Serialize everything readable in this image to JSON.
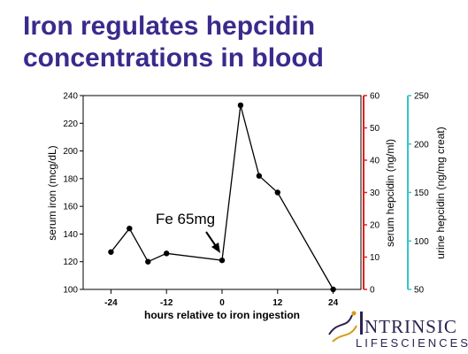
{
  "title": {
    "line1": "Iron regulates hepcidin",
    "line2": "concentrations in blood"
  },
  "colors": {
    "title": "#3b2a8c",
    "serum_hepcidin_axis": "#e02020",
    "urine_hepcidin_axis": "#33c6cc",
    "series": "#000000"
  },
  "chart_data": {
    "type": "line",
    "xlabel": "hours relative to iron ingestion",
    "ylabel": "serum iron (mcg/dL)",
    "ylabel_right": "serum hepcidin (ng/ml)",
    "ylabel_right2": "urine hepcidin (ng/mg creat)",
    "xlim": [
      -30,
      30
    ],
    "ylim": [
      100,
      240
    ],
    "ylim_right": [
      0,
      60
    ],
    "ylim_right2": [
      50,
      250
    ],
    "x_ticks": [
      "-24",
      "-12",
      "0",
      "12",
      "24"
    ],
    "y_ticks": [
      "100",
      "120",
      "140",
      "160",
      "180",
      "200",
      "220",
      "240"
    ],
    "y_right_ticks": [
      "0",
      "10",
      "20",
      "30",
      "40",
      "50",
      "60"
    ],
    "y_right2_ticks": [
      "50",
      "100",
      "150",
      "200",
      "250"
    ],
    "series": [
      {
        "x": [
          -24,
          -20,
          -16,
          -12,
          0,
          4,
          8,
          12,
          24
        ],
        "y": [
          127,
          144,
          120,
          126,
          121,
          233,
          182,
          170,
          100
        ]
      }
    ],
    "annotation": {
      "text": "Fe 65mg",
      "x": 0,
      "y": 121
    }
  },
  "logo": {
    "main": "NTRINSIC",
    "sub": "LIFESCIENCES"
  }
}
